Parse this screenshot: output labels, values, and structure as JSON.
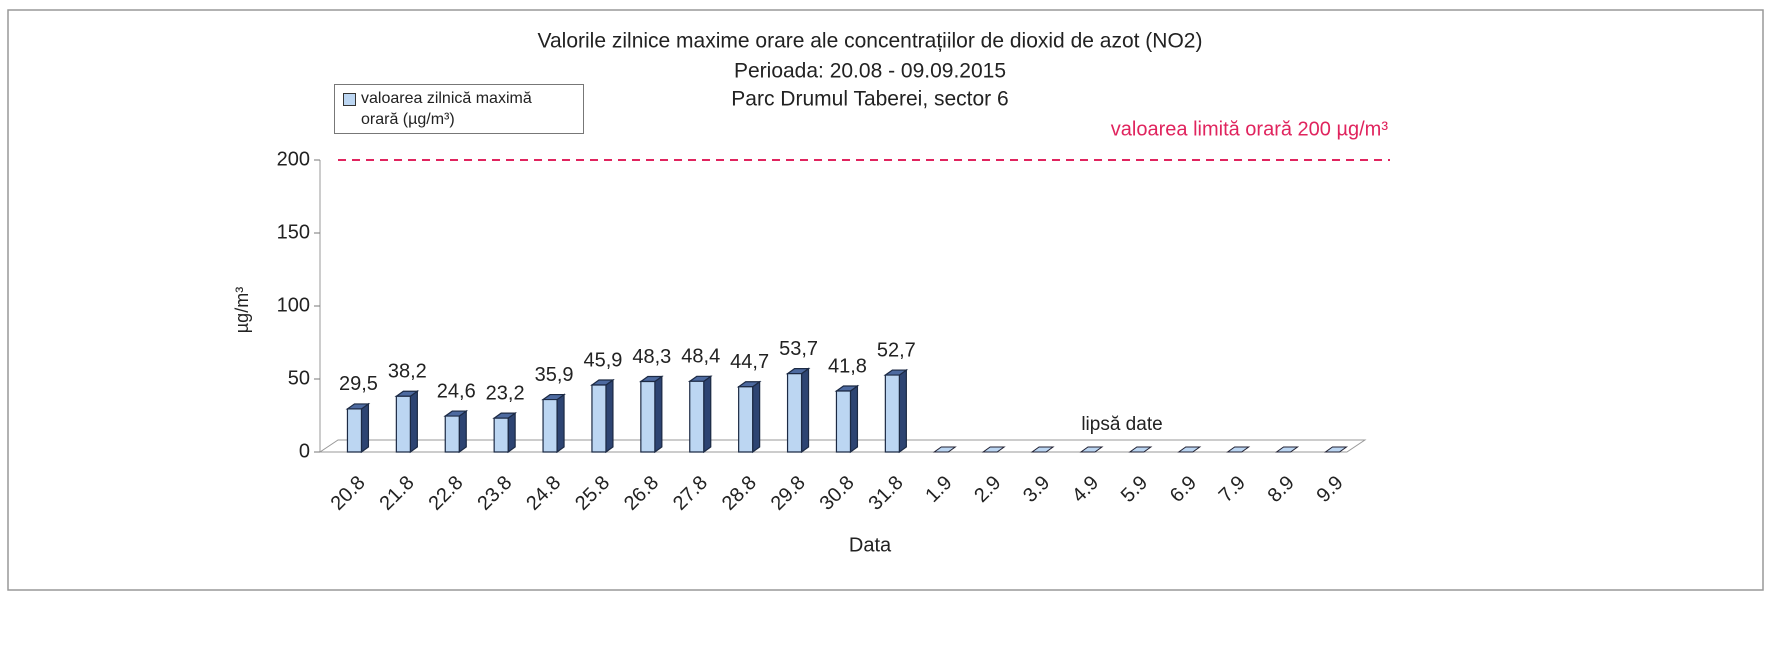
{
  "chart_data": {
    "type": "bar3d",
    "title": "Valorile zilnice maxime orare ale concentrațiilor de dioxid de azot (NO2)",
    "subtitle": [
      "Perioada: 20.08 - 09.09.2015",
      "Parc Drumul Taberei, sector 6"
    ],
    "x_label": "Data",
    "y_label": "µg/m³",
    "categories": [
      "20.8",
      "21.8",
      "22.8",
      "23.8",
      "24.8",
      "25.8",
      "26.8",
      "27.8",
      "28.8",
      "29.8",
      "30.8",
      "31.8",
      "1.9",
      "2.9",
      "3.9",
      "4.9",
      "5.9",
      "6.9",
      "7.9",
      "8.9",
      "9.9"
    ],
    "series": [
      {
        "name": "valoarea zilnică maximă orară (µg/m³)",
        "color": "#bcd6f2",
        "values": [
          29.5,
          38.2,
          24.6,
          23.2,
          35.9,
          45.9,
          48.3,
          48.4,
          44.7,
          53.7,
          41.8,
          52.7,
          null,
          null,
          null,
          null,
          null,
          null,
          null,
          null,
          null
        ],
        "value_labels": [
          "29,5",
          "38,2",
          "24,6",
          "23,2",
          "35,9",
          "45,9",
          "48,3",
          "48,4",
          "44,7",
          "53,7",
          "41,8",
          "52,7",
          null,
          null,
          null,
          null,
          null,
          null,
          null,
          null,
          null
        ]
      }
    ],
    "ylim": [
      0,
      200
    ],
    "yticks": [
      0,
      50,
      100,
      150,
      200
    ],
    "limit": {
      "value": 200,
      "label": "valoarea limită orară 200 µg/m³",
      "color": "#e0245e"
    },
    "annotations": [
      "lipsă date"
    ],
    "legend": "top-left"
  }
}
